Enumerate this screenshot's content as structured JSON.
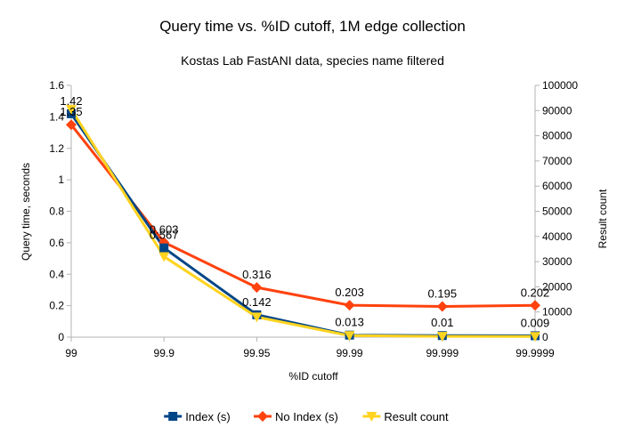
{
  "chart_data": {
    "type": "line",
    "title": "Query time vs. %ID cutoff, 1M edge collection",
    "subtitle": "Kostas Lab FastANI data, species name filtered",
    "xlabel": "%ID cutoff",
    "ylabel": "Query time, seconds",
    "y2label": "Result count",
    "categories": [
      "99",
      "99.9",
      "99.95",
      "99.99",
      "99.999",
      "99.9999"
    ],
    "ylim": [
      0,
      1.6
    ],
    "yticks": [
      "0",
      "0.2",
      "0.4",
      "0.6",
      "0.8",
      "1",
      "1.2",
      "1.4",
      "1.6"
    ],
    "y2lim": [
      0,
      100000
    ],
    "y2ticks": [
      "0",
      "10000",
      "20000",
      "30000",
      "40000",
      "50000",
      "60000",
      "70000",
      "80000",
      "90000",
      "100000"
    ],
    "grid": false,
    "legend_position": "bottom",
    "series": [
      {
        "name": "Index (s)",
        "axis": "left",
        "color": "#004586",
        "marker": "square",
        "values": [
          1.42,
          0.567,
          0.142,
          0.013,
          0.01,
          0.009
        ],
        "labels": [
          "1.42",
          "0.567",
          "0.142",
          "0.013",
          "0.01",
          "0.009"
        ]
      },
      {
        "name": "No Index (s)",
        "axis": "left",
        "color": "#ff420e",
        "marker": "diamond",
        "values": [
          1.35,
          0.603,
          0.316,
          0.203,
          0.195,
          0.202
        ],
        "labels": [
          "1.35",
          "0.603",
          "0.316",
          "0.203",
          "0.195",
          "0.202"
        ]
      },
      {
        "name": "Result count",
        "axis": "right",
        "color": "#ffd320",
        "marker": "triangle-down",
        "values": [
          90500,
          32000,
          8000,
          600,
          300,
          250
        ],
        "labels": []
      }
    ]
  }
}
